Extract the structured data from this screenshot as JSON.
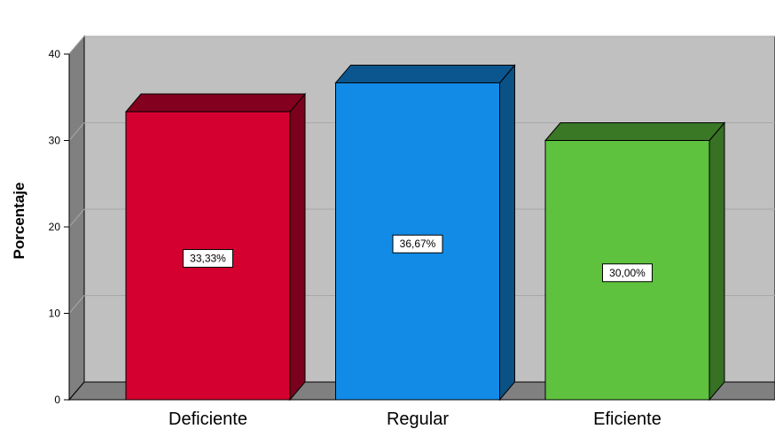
{
  "chart_data": {
    "type": "bar",
    "style": "3d",
    "categories": [
      "Deficiente",
      "Regular",
      "Eficiente"
    ],
    "values": [
      33.33,
      36.67,
      30.0
    ],
    "data_labels": [
      "33,33%",
      "36,67%",
      "30,00%"
    ],
    "colors": [
      "#d40030",
      "#128be6",
      "#5ec23e"
    ],
    "xlabel": "",
    "ylabel": "Porcentaje",
    "ylim": [
      0,
      40
    ],
    "yticks": [
      0,
      10,
      20,
      30,
      40
    ],
    "grid": true,
    "legend": "none",
    "background_color": "#c0c0c0",
    "floor_color": "#808080"
  }
}
